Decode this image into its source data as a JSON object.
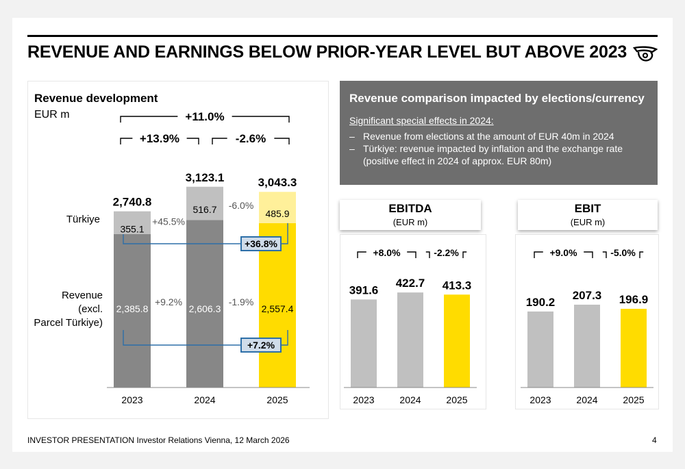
{
  "header": {
    "title": "REVENUE AND EARNINGS BELOW PRIOR-YEAR LEVEL BUT ABOVE 2023"
  },
  "left_panel": {
    "title": "Revenue development",
    "unit": "EUR m",
    "row_labels": {
      "turkiye": "Türkiye",
      "revenue_excl_line1": "Revenue",
      "revenue_excl_line2": "(excl.",
      "revenue_excl_line3": "Parcel Türkiye)"
    }
  },
  "info_box": {
    "title": "Revenue comparison impacted by elections/currency",
    "subtitle": "Significant special effects in 2024:",
    "bullets": [
      "Revenue from elections at the amount of EUR 40m in 2024",
      "Türkiye: revenue impacted by inflation and the exchange rate (positive effect in 2024 of approx. EUR 80m)"
    ]
  },
  "ebitda_card": {
    "title": "EBITDA",
    "unit": "(EUR m)"
  },
  "ebit_card": {
    "title": "EBIT",
    "unit": "(EUR m)"
  },
  "colors": {
    "dark_grey": "#878787",
    "light_grey": "#c0c0c0",
    "yellow": "#ffdc00",
    "light_yellow": "#fff09a",
    "box_blue": "#2d6fa8",
    "box_fill": "#cfdcea",
    "box_bg": "#6e6e6e"
  },
  "chart_data": [
    {
      "type": "bar",
      "stacked": true,
      "categories": [
        "2023",
        "2024",
        "2025"
      ],
      "series": [
        {
          "name": "Revenue (excl. Parcel Türkiye)",
          "values": [
            2385.8,
            2606.3,
            2557.4
          ]
        },
        {
          "name": "Türkiye",
          "values": [
            355.1,
            516.7,
            485.9
          ]
        }
      ],
      "totals": [
        2740.8,
        3123.1,
        3043.3
      ],
      "total_labels": [
        "2,740.8",
        "3,123.1",
        "3,043.3"
      ],
      "segment_labels": {
        "base": [
          "2,385.8",
          "2,606.3",
          "2,557.4"
        ],
        "top": [
          "355.1",
          "516.7",
          "485.9"
        ]
      },
      "growth_labels": {
        "total_2023_2025": "+11.0%",
        "total_2023_2024": "+13.9%",
        "total_2024_2025": "-2.6%",
        "turkiye_2023_2024": "+45.5%",
        "turkiye_2024_2025": "-6.0%",
        "base_2023_2024": "+9.2%",
        "base_2024_2025": "-1.9%",
        "turkiye_2023_2025": "+36.8%",
        "base_2023_2025": "+7.2%"
      }
    },
    {
      "type": "bar",
      "title": "EBITDA",
      "categories": [
        "2023",
        "2024",
        "2025"
      ],
      "values": [
        391.6,
        422.7,
        413.3
      ],
      "value_labels": [
        "391.6",
        "422.7",
        "413.3"
      ],
      "growth_labels": [
        "+8.0%",
        "-2.2%"
      ]
    },
    {
      "type": "bar",
      "title": "EBIT",
      "categories": [
        "2023",
        "2024",
        "2025"
      ],
      "values": [
        190.2,
        207.3,
        196.9
      ],
      "value_labels": [
        "190.2",
        "207.3",
        "196.9"
      ],
      "growth_labels": [
        "+9.0%",
        "-5.0%"
      ]
    }
  ],
  "footer": {
    "text": "INVESTOR PRESENTATION Investor Relations Vienna, 12 March 2026",
    "page": "4"
  }
}
